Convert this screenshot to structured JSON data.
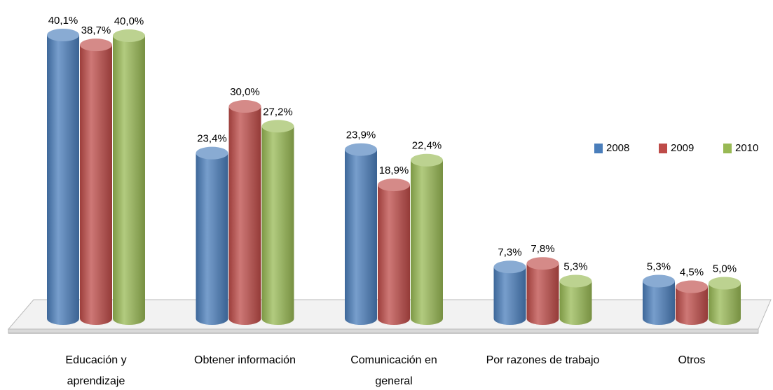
{
  "chart_data": {
    "type": "bar3d",
    "categories": [
      "Educación y aprendizaje",
      "Obtener información",
      "Comunicación en general",
      "Por razones de trabajo",
      "Otros"
    ],
    "series": [
      {
        "name": "2008",
        "color": "#4a7ebb",
        "values": [
          40.1,
          23.4,
          23.9,
          7.3,
          5.3
        ],
        "value_labels": [
          "40,1%",
          "23,4%",
          "23,9%",
          "7,3%",
          "5,3%"
        ]
      },
      {
        "name": "2009",
        "color": "#be4b48",
        "values": [
          38.7,
          30.0,
          18.9,
          7.8,
          4.5
        ],
        "value_labels": [
          "38,7%",
          "30,0%",
          "18,9%",
          "7,8%",
          "4,5%"
        ]
      },
      {
        "name": "2010",
        "color": "#98b954",
        "values": [
          40.0,
          27.2,
          22.4,
          5.3,
          5.0
        ],
        "value_labels": [
          "40,0%",
          "27,2%",
          "22,4%",
          "5,3%",
          "5,0%"
        ]
      }
    ],
    "legend": "right"
  }
}
